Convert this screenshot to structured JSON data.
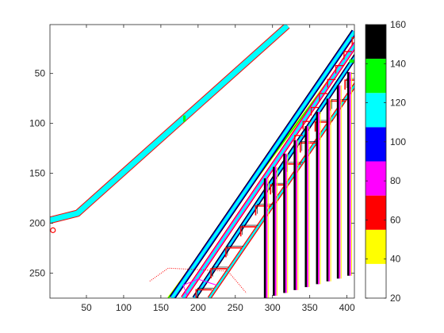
{
  "chart_data": {
    "type": "heatmap",
    "title": "",
    "xlabel": "",
    "ylabel": "",
    "xlim": [
      1,
      410
    ],
    "ylim": [
      1,
      275
    ],
    "y_direction": "reverse",
    "x_ticks": [
      50,
      100,
      150,
      200,
      250,
      300,
      350,
      400
    ],
    "y_ticks": [
      50,
      100,
      150,
      200,
      250
    ],
    "grid": false,
    "colormap": {
      "name": "discrete-8-level",
      "clim": [
        20,
        160
      ],
      "ticks": [
        20,
        40,
        60,
        80,
        100,
        120,
        140,
        160
      ],
      "colors": [
        "#ffffff",
        "#ffff00",
        "#ff0000",
        "#ff00ff",
        "#0000ff",
        "#00ffff",
        "#00ff00",
        "#000000"
      ],
      "position": "right"
    },
    "features": [
      {
        "name": "handrail-top",
        "points": [
          [
            1,
            197
          ],
          [
            38,
            190
          ],
          [
            320,
            2
          ]
        ],
        "widths": [
          {
            "c": "#ff0000",
            "w": 9
          },
          {
            "c": "#00ffff",
            "w": 7
          }
        ],
        "offset": [
          0,
          2
        ]
      },
      {
        "name": "stringer-outer",
        "points": [
          [
            160,
            275
          ],
          [
            412,
            20
          ]
        ],
        "widths": [
          {
            "c": "#ffff00",
            "w": 3
          },
          {
            "c": "#00ff00",
            "w": 1.5
          }
        ],
        "offset": [
          -15,
          0
        ]
      },
      {
        "name": "rail-main-a",
        "points": [
          [
            165,
            275
          ],
          [
            410,
            8
          ]
        ],
        "widths": [
          {
            "c": "#000000",
            "w": 8
          },
          {
            "c": "#0000ff",
            "w": 6
          },
          {
            "c": "#00ffff",
            "w": 4
          }
        ],
        "offset": [
          0,
          0
        ]
      },
      {
        "name": "rail-main-b",
        "points": [
          [
            180,
            275
          ],
          [
            412,
            20
          ]
        ],
        "widths": [
          {
            "c": "#ff0000",
            "w": 7
          },
          {
            "c": "#ff00ff",
            "w": 5
          },
          {
            "c": "#00ffff",
            "w": 3
          }
        ],
        "offset": [
          0,
          0
        ]
      },
      {
        "name": "rail-main-c",
        "points": [
          [
            195,
            275
          ],
          [
            412,
            32
          ]
        ],
        "widths": [
          {
            "c": "#000000",
            "w": 6
          },
          {
            "c": "#0000ff",
            "w": 4
          },
          {
            "c": "#00ffff",
            "w": 2.5
          }
        ],
        "offset": [
          0,
          0
        ]
      },
      {
        "name": "rail-inner",
        "points": [
          [
            215,
            275
          ],
          [
            412,
            60
          ]
        ],
        "widths": [
          {
            "c": "#ff0000",
            "w": 5
          },
          {
            "c": "#00ffff",
            "w": 2.5
          }
        ],
        "offset": [
          0,
          0
        ]
      }
    ],
    "balusters_x": [
      290,
      302,
      316,
      330,
      345,
      360,
      374,
      388,
      402
    ],
    "stair_steps_x": [
      208,
      228,
      248,
      268,
      288,
      308,
      328,
      348,
      368,
      388,
      408
    ]
  }
}
